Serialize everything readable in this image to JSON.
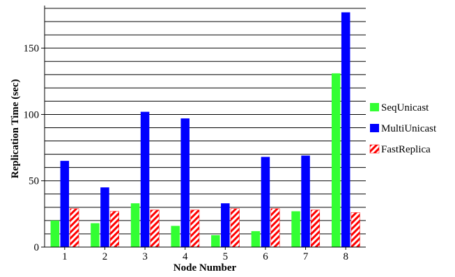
{
  "chart_data": {
    "type": "bar",
    "title": "",
    "xlabel": "Node Number",
    "ylabel": "Replication Time (sec)",
    "categories": [
      "1",
      "2",
      "3",
      "4",
      "5",
      "6",
      "7",
      "8"
    ],
    "ylim": [
      0,
      180
    ],
    "yticks": [
      0,
      50,
      100,
      150
    ],
    "grid": "horizontal",
    "legend_position": "right",
    "series": [
      {
        "name": "SeqUnicast",
        "color": "#33ff33",
        "pattern": "solid",
        "values": [
          20,
          18,
          33,
          16,
          9,
          12,
          27,
          131
        ]
      },
      {
        "name": "MultiUnicast",
        "color": "#0000ff",
        "pattern": "solid",
        "values": [
          65,
          45,
          102,
          97,
          33,
          68,
          69,
          177
        ]
      },
      {
        "name": "FastReplica",
        "color": "#ff0000",
        "pattern": "diagonal-hatch",
        "values": [
          29,
          27,
          28,
          28,
          29,
          29,
          28,
          26
        ]
      }
    ]
  }
}
